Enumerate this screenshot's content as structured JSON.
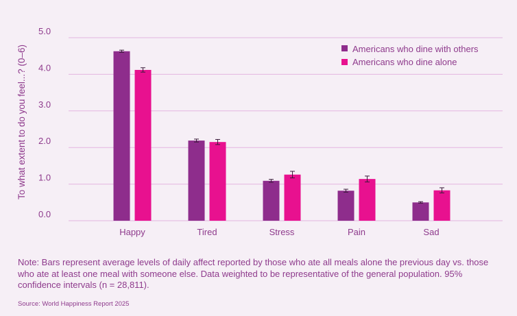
{
  "chart_data": {
    "type": "bar",
    "ylabel": "To what extent to do you feel...? (0–6)",
    "ylim": [
      0,
      5
    ],
    "yticks": [
      "0.0",
      "1.0",
      "2.0",
      "3.0",
      "4.0",
      "5.0"
    ],
    "grid": true,
    "legend_position": "top-right",
    "categories": [
      "Happy",
      "Tired",
      "Stress",
      "Pain",
      "Sad"
    ],
    "series": [
      {
        "name": "Americans who dine with others",
        "color": "#8e2d8c",
        "values": [
          4.63,
          2.19,
          1.09,
          0.82,
          0.5
        ],
        "ci": [
          0.03,
          0.04,
          0.04,
          0.04,
          0.02
        ]
      },
      {
        "name": "Americans who dine alone",
        "color": "#e8118f",
        "values": [
          4.12,
          2.15,
          1.26,
          1.14,
          0.83
        ],
        "ci": [
          0.06,
          0.07,
          0.09,
          0.08,
          0.07
        ]
      }
    ]
  },
  "note": "Note: Bars represent average levels of daily affect reported by those who ate all meals alone the previous day vs. those who ate at least one meal with someone else. Data weighted to be representative of the general population. 95% confidence intervals (n = 28,811).",
  "source": "Source: World Happiness Report 2025",
  "colors": {
    "background": "#f6eff6",
    "grid": "#e3b6e0",
    "text": "#8e3a8c"
  }
}
